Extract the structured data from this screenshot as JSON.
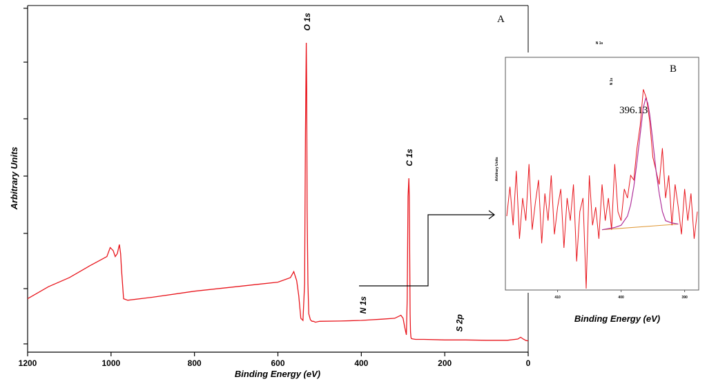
{
  "chart_data": [
    {
      "panel": "A",
      "type": "line",
      "xlabel": "Binding Energy (eV)",
      "ylabel": "Arbitrary Units",
      "xlim": [
        1200,
        0
      ],
      "x_reversed": true,
      "x_ticks": [
        1200,
        1000,
        800,
        600,
        400,
        200,
        0
      ],
      "ylim": [
        0,
        100
      ],
      "y_tick_labels": false,
      "grid": false,
      "series_color": "#e8141b",
      "series": [
        {
          "x": [
            1200,
            1150,
            1100,
            1050,
            1010,
            1002,
            995,
            990,
            985,
            980,
            977,
            975,
            970,
            960,
            900,
            800,
            700,
            600,
            570,
            562,
            555,
            550,
            545,
            540,
            536,
            534,
            532,
            531,
            530,
            528,
            526,
            522,
            518,
            515,
            510,
            500,
            450,
            400,
            350,
            320,
            305,
            300,
            296,
            292,
            290,
            288,
            286,
            285,
            284,
            283,
            282,
            281,
            280,
            278,
            275,
            270,
            250,
            200,
            150,
            100,
            50,
            25,
            18,
            12,
            5,
            0
          ],
          "y": [
            15,
            19,
            22,
            26,
            29,
            32,
            31,
            29,
            30,
            33,
            30,
            25,
            15,
            14.5,
            15.5,
            17.5,
            19,
            20.5,
            22,
            24,
            21,
            16,
            8.5,
            7.8,
            20,
            70,
            100,
            85,
            45,
            20,
            10,
            8,
            7.5,
            7.5,
            7.2,
            7.5,
            7.6,
            7.8,
            8.2,
            8.5,
            9.5,
            8.5,
            5.5,
            3,
            15,
            49,
            55,
            49,
            30,
            10,
            4,
            2.2,
            1.8,
            1.7,
            1.6,
            1.5,
            1.5,
            1.3,
            1.3,
            1.2,
            1.2,
            1.6,
            2.2,
            1.6,
            1.1,
            1.0
          ]
        }
      ],
      "annotations": [
        {
          "text": "O 1s",
          "x": 530,
          "y": 104
        },
        {
          "text": "C 1s",
          "x": 285,
          "y": 59
        },
        {
          "text": "N 1s",
          "x": 396,
          "y": 10
        },
        {
          "text": "S 2p",
          "x": 165,
          "y": 4
        }
      ]
    },
    {
      "panel": "B",
      "type": "line",
      "title": "N 1s",
      "xlabel": "Binding Energy (eV)",
      "ylabel": "Arbitrary Units",
      "x_reversed": true,
      "xlim": [
        418,
        388
      ],
      "x_ticks": [
        410,
        400,
        390
      ],
      "ylim": [
        0,
        100
      ],
      "y_tick_labels": false,
      "grid": false,
      "series_color": "#e8141b",
      "fit_color": "#b0309a",
      "baseline_color": "#e09a3a",
      "peak_annotation": {
        "label": "N 1s",
        "value": "396.13",
        "x": 396.13
      },
      "fit": {
        "x": [
          403,
          402,
          401,
          400,
          399,
          398.5,
          398,
          397.5,
          397,
          396.5,
          396.13,
          395.8,
          395.5,
          395,
          394.5,
          394,
          393.5,
          393,
          392,
          391
        ],
        "y": [
          26,
          26.5,
          27,
          28,
          32,
          37,
          45,
          56,
          68,
          80,
          84,
          82,
          77,
          65,
          52,
          42,
          34,
          30,
          29,
          28.5
        ]
      },
      "baseline": {
        "x": [
          403,
          391
        ],
        "y": [
          26,
          28.5
        ]
      },
      "series": [
        {
          "x": [
            418,
            417.5,
            417,
            416.5,
            416,
            415.5,
            415,
            414.5,
            414,
            413.5,
            413,
            412.5,
            412,
            411.5,
            411,
            410.5,
            410,
            409.5,
            409,
            408.5,
            408,
            407.5,
            407,
            406.5,
            406,
            405.5,
            405,
            404.5,
            404,
            403.5,
            403,
            402.5,
            402,
            401.5,
            401,
            400.5,
            400,
            399.5,
            399,
            398.5,
            398,
            397.5,
            397,
            396.5,
            396,
            395.5,
            395,
            394.5,
            394,
            393.5,
            393,
            392.5,
            392,
            391.5,
            391,
            390.5,
            390,
            389.5,
            389,
            388.5,
            388
          ],
          "y": [
            32,
            45,
            28,
            52,
            22,
            40,
            30,
            55,
            26,
            38,
            48,
            20,
            42,
            30,
            50,
            24,
            36,
            44,
            18,
            40,
            30,
            46,
            12,
            34,
            40,
            0,
            50,
            28,
            36,
            22,
            46,
            30,
            40,
            26,
            55,
            34,
            30,
            44,
            40,
            50,
            48,
            62,
            72,
            88,
            84,
            74,
            58,
            52,
            46,
            62,
            40,
            50,
            28,
            46,
            36,
            24,
            44,
            30,
            42,
            22,
            34
          ]
        }
      ]
    }
  ]
}
